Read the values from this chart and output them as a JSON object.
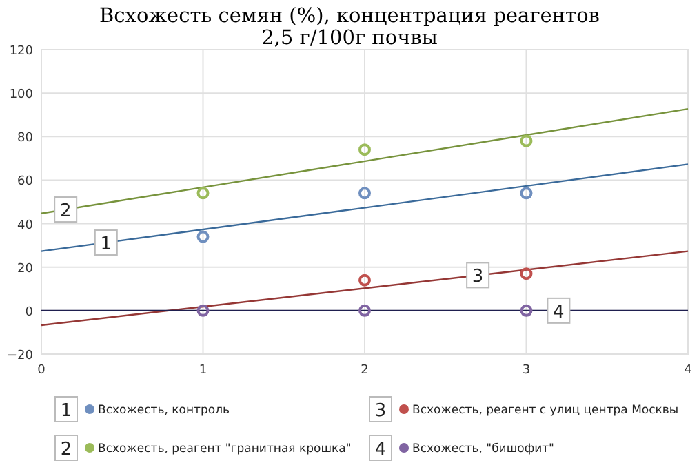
{
  "chart_data": {
    "type": "scatter",
    "title": "Всхожесть семян (%), концентрация реагентов",
    "subtitle": "2,5 г/100г почвы",
    "xlim": [
      0,
      4
    ],
    "xticks": [
      0,
      1,
      2,
      3,
      4
    ],
    "ylim": [
      -20,
      120
    ],
    "yticks": [
      {
        "value": -20,
        "label": "−20"
      },
      0,
      20,
      40,
      60,
      80,
      100,
      120
    ],
    "grid": true,
    "legend": "bottom",
    "marker": "circle",
    "series": [
      {
        "name": "Всхожесть, контроль",
        "color": "#6f8fbf",
        "x": [
          1,
          2,
          3
        ],
        "values": [
          34,
          54,
          54
        ]
      },
      {
        "name": "Всхожесть, реагент \"гранитная крошка\"",
        "color": "#9bbb59",
        "x": [
          1,
          2,
          3
        ],
        "values": [
          54,
          74,
          78
        ]
      },
      {
        "name": "Всхожесть, реагент с улиц центра Москвы",
        "color": "#c0504d",
        "x": [
          2,
          3
        ],
        "values": [
          14,
          17
        ]
      },
      {
        "name": "Всхожесть, \"бишофит\"",
        "color": "#8064a2",
        "x": [
          1,
          2,
          3
        ],
        "values": [
          0,
          0,
          0
        ]
      },
      {
        "type": "line",
        "marker": "none",
        "color": "#3a6a9a",
        "x": [
          0,
          4
        ],
        "values": [
          27.3,
          67.3
        ]
      },
      {
        "type": "line",
        "marker": "none",
        "color": "#77933c",
        "x": [
          0,
          4
        ],
        "values": [
          44.7,
          92.7
        ]
      },
      {
        "type": "line",
        "marker": "none",
        "color": "#953735",
        "x": [
          0,
          4
        ],
        "values": [
          -6.7,
          27.3
        ]
      },
      {
        "type": "line",
        "marker": "none",
        "color": "#1f1f4f",
        "x": [
          0,
          4
        ],
        "values": [
          0,
          0
        ]
      }
    ],
    "annotations": [
      {
        "text": "1",
        "x": 0.4,
        "y": 31.3
      },
      {
        "text": "2",
        "x": 0.15,
        "y": 46.5
      },
      {
        "text": "3",
        "x": 2.7,
        "y": 16.3
      },
      {
        "text": "4",
        "x": 3.2,
        "y": 0
      }
    ]
  }
}
